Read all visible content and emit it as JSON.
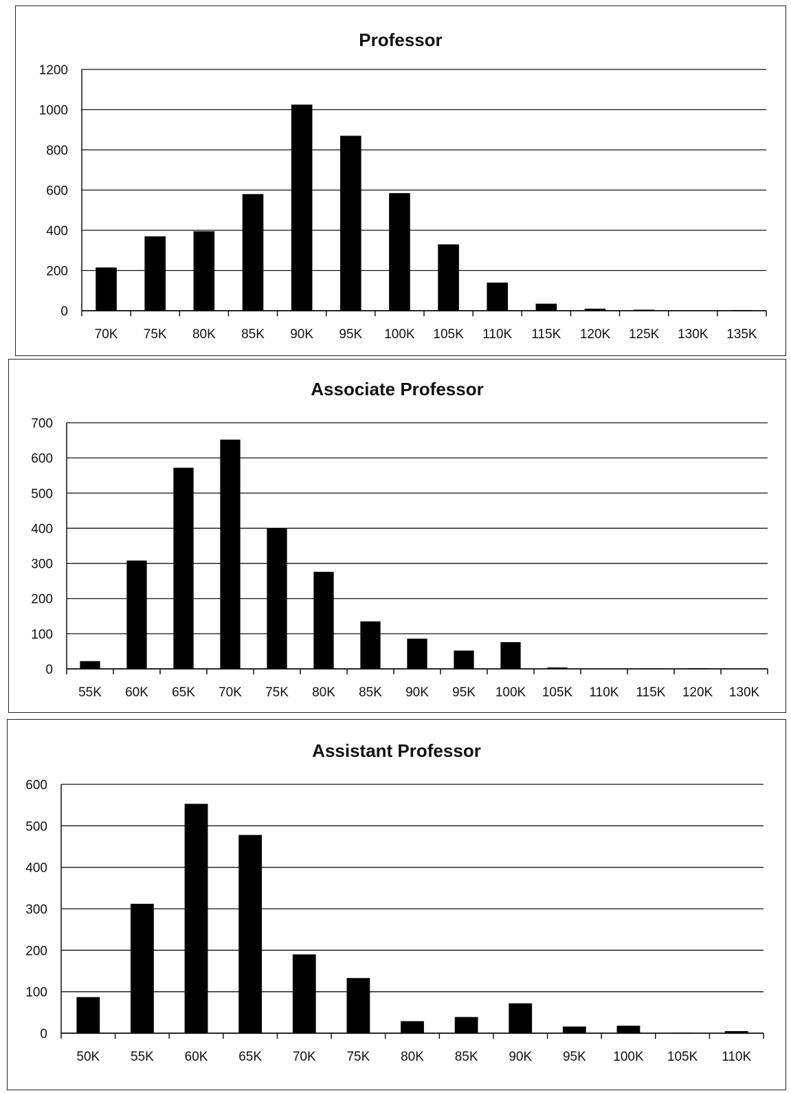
{
  "chart_data": [
    {
      "type": "bar",
      "title": "Professor",
      "categories": [
        "70K",
        "75K",
        "80K",
        "85K",
        "90K",
        "95K",
        "100K",
        "105K",
        "110K",
        "115K",
        "120K",
        "125K",
        "130K",
        "135K"
      ],
      "values": [
        215,
        370,
        395,
        580,
        1025,
        870,
        585,
        330,
        140,
        35,
        10,
        5,
        0,
        3
      ],
      "ylim": [
        0,
        1200
      ],
      "yticks": [
        0,
        200,
        400,
        600,
        800,
        1000,
        1200
      ],
      "grid": true
    },
    {
      "type": "bar",
      "title": "Associate Professor",
      "categories": [
        "55K",
        "60K",
        "65K",
        "70K",
        "75K",
        "80K",
        "85K",
        "90K",
        "95K",
        "100K",
        "105K",
        "110K",
        "115K",
        "120K",
        "130K"
      ],
      "values": [
        22,
        308,
        572,
        652,
        400,
        276,
        135,
        86,
        52,
        76,
        4,
        0,
        1,
        2,
        0
      ],
      "ylim": [
        0,
        700
      ],
      "yticks": [
        0,
        100,
        200,
        300,
        400,
        500,
        600,
        700
      ],
      "grid": true
    },
    {
      "type": "bar",
      "title": "Assistant Professor",
      "categories": [
        "50K",
        "55K",
        "60K",
        "65K",
        "70K",
        "75K",
        "80K",
        "85K",
        "90K",
        "95K",
        "100K",
        "105K",
        "110K"
      ],
      "values": [
        87,
        312,
        553,
        478,
        190,
        133,
        29,
        39,
        72,
        16,
        18,
        1,
        5
      ],
      "ylim": [
        0,
        600
      ],
      "yticks": [
        0,
        100,
        200,
        300,
        400,
        500,
        600
      ],
      "grid": true
    }
  ]
}
